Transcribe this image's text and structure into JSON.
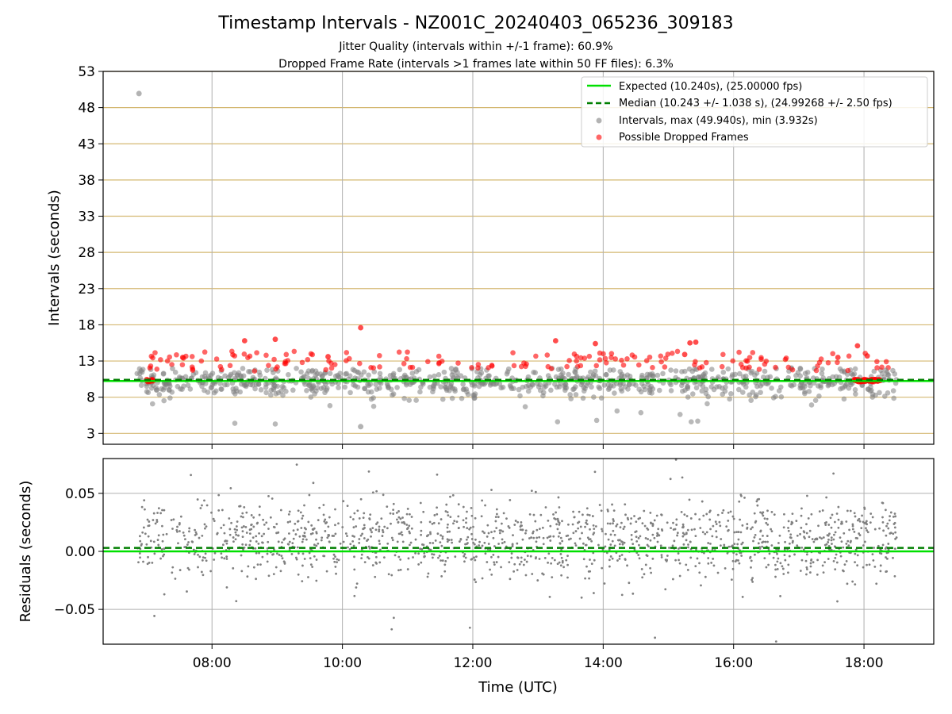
{
  "figure": {
    "title": "Timestamp Intervals - NZ001C_20240403_065236_309183",
    "subtitle1": "Jitter Quality (intervals within +/-1 frame): 60.9%",
    "subtitle2": "Dropped Frame Rate (intervals >1 frames late within 50 FF files): 6.3%"
  },
  "colors": {
    "expected": "#00e000",
    "median": "#007f00",
    "intervals": "#808080",
    "dropped": "#ff0000",
    "hgrid_top": "#d4b872",
    "grid": "#b0b0b0"
  },
  "chart_data": [
    {
      "id": "intervals",
      "type": "scatter",
      "ylabel": "Intervals (seconds)",
      "xlim_hours": [
        6.33,
        19.07
      ],
      "ylim": [
        1.5,
        53
      ],
      "yticks": [
        3,
        8,
        13,
        18,
        23,
        28,
        33,
        38,
        43,
        48,
        53
      ],
      "xticks_hours": [
        8,
        10,
        12,
        14,
        16,
        18
      ],
      "grid": true,
      "legend_position": "top-right",
      "lines": [
        {
          "name": "Expected (10.240s), (25.00000 fps)",
          "y": 10.24,
          "style": "solid",
          "color": "#00e000"
        },
        {
          "name": "Median (10.243 +/- 1.038 s), (24.99268 +/- 2.50 fps)",
          "y": 10.243,
          "style": "dashed",
          "color": "#007f00"
        }
      ],
      "series": [
        {
          "name": "Intervals, max (49.940s), min (3.932s)",
          "color": "#808080",
          "max": 49.94,
          "min": 3.932,
          "max_at_hours": 6.88,
          "min_at_hours": 10.28,
          "x_range_hours": [
            6.85,
            18.5
          ],
          "center": 10.24,
          "spread": 1.04
        },
        {
          "name": "Possible Dropped Frames",
          "color": "#ff0000",
          "highlight_points": [
            [
              10.28,
              17.6
            ],
            [
              8.97,
              16.0
            ],
            [
              8.5,
              15.8
            ],
            [
              13.27,
              15.8
            ],
            [
              13.88,
              15.4
            ],
            [
              15.33,
              15.5
            ],
            [
              15.42,
              15.6
            ],
            [
              17.9,
              15.1
            ],
            [
              15.25,
              13.9
            ],
            [
              17.6,
              13.5
            ],
            [
              18.05,
              13.7
            ],
            [
              7.55,
              13.5
            ],
            [
              9.78,
              13.6
            ]
          ],
          "cluster_hours": [
            [
              7.0,
              7.1
            ],
            [
              17.85,
              18.25
            ]
          ],
          "cluster_value": 10.3
        }
      ]
    },
    {
      "id": "residuals",
      "type": "scatter",
      "xlabel": "Time (UTC)",
      "ylabel": "Residuals (seconds)",
      "xlim_hours": [
        6.33,
        19.07
      ],
      "ylim": [
        -0.08,
        0.08
      ],
      "yticks": [
        0.05,
        0.0,
        -0.05
      ],
      "ytick_labels": [
        "0.05",
        "0.00",
        "−0.05"
      ],
      "xticks_hours": [
        8,
        10,
        12,
        14,
        16,
        18
      ],
      "xtick_labels": [
        "08:00",
        "10:00",
        "12:00",
        "14:00",
        "16:00",
        "18:00"
      ],
      "grid": true,
      "lines": [
        {
          "y": 0.0,
          "style": "solid",
          "color": "#00e000"
        },
        {
          "y": 0.003,
          "style": "dashed",
          "color": "#007f00"
        }
      ],
      "series": [
        {
          "color": "#808080",
          "x_range_hours": [
            6.85,
            18.5
          ],
          "levels": [
            0.0,
            0.02
          ],
          "spread": 0.012,
          "approx_points": 1500
        }
      ]
    }
  ]
}
